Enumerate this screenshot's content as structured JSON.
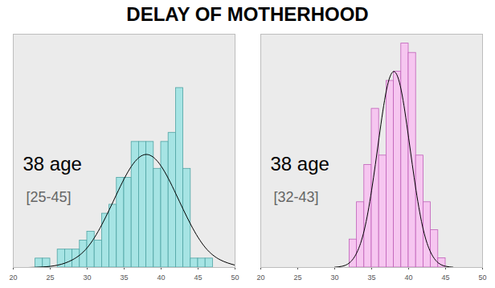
{
  "title": "DELAY OF MOTHERHOOD",
  "chart_data": [
    {
      "type": "histogram",
      "bins": [
        22,
        23,
        24,
        25,
        26,
        27,
        28,
        29,
        30,
        31,
        32,
        33,
        34,
        35,
        36,
        37,
        38,
        39,
        40,
        41,
        42,
        43,
        44,
        45,
        46,
        47
      ],
      "counts": [
        0,
        1,
        1,
        0,
        2,
        2,
        2,
        3,
        4,
        3,
        6,
        7,
        10,
        10,
        14,
        14,
        14,
        11,
        14,
        15,
        20,
        11,
        1,
        1,
        1
      ],
      "color": "#a6e4e4",
      "curve": {
        "x": [
          20,
          22,
          24,
          26,
          28,
          30,
          32,
          34,
          36,
          38,
          40,
          42,
          44,
          46,
          48,
          50
        ],
        "y": [
          0,
          0,
          0.06,
          0.26,
          0.85,
          2.2,
          4.8,
          8.2,
          11.3,
          12.6,
          11.3,
          8.2,
          4.8,
          2.2,
          0.85,
          0.26
        ]
      },
      "annotations": [
        "38 age",
        "[25-45]"
      ],
      "xlim": [
        20,
        50
      ],
      "xticks": [
        20,
        25,
        30,
        35,
        40,
        45,
        50
      ],
      "ylim": [
        0,
        26
      ],
      "tick_labels": "x",
      "grid": false
    },
    {
      "type": "histogram",
      "bins": [
        32,
        33,
        34,
        35,
        36,
        37,
        38,
        39,
        40,
        41,
        42,
        43,
        44,
        45
      ],
      "counts": [
        3,
        7,
        11,
        17,
        12,
        20,
        21,
        24,
        23,
        12,
        7,
        4,
        1
      ],
      "color": "#f6c6f0",
      "curve": {
        "x": [
          30,
          31,
          32,
          33,
          34,
          35,
          36,
          37,
          38,
          39,
          40,
          41,
          42,
          43,
          44,
          45,
          46
        ],
        "y": [
          0.03,
          0.13,
          0.5,
          1.6,
          4.0,
          8.3,
          13.9,
          19.0,
          21,
          19.0,
          13.9,
          8.3,
          4.0,
          1.6,
          0.5,
          0.13,
          0.03
        ]
      },
      "annotations": [
        "38 age",
        "[32-43]"
      ],
      "xlim": [
        20,
        50
      ],
      "xticks": [
        20,
        25,
        30,
        35,
        40,
        45,
        50
      ],
      "ylim": [
        0,
        25
      ],
      "tick_labels": "x",
      "grid": false
    }
  ]
}
